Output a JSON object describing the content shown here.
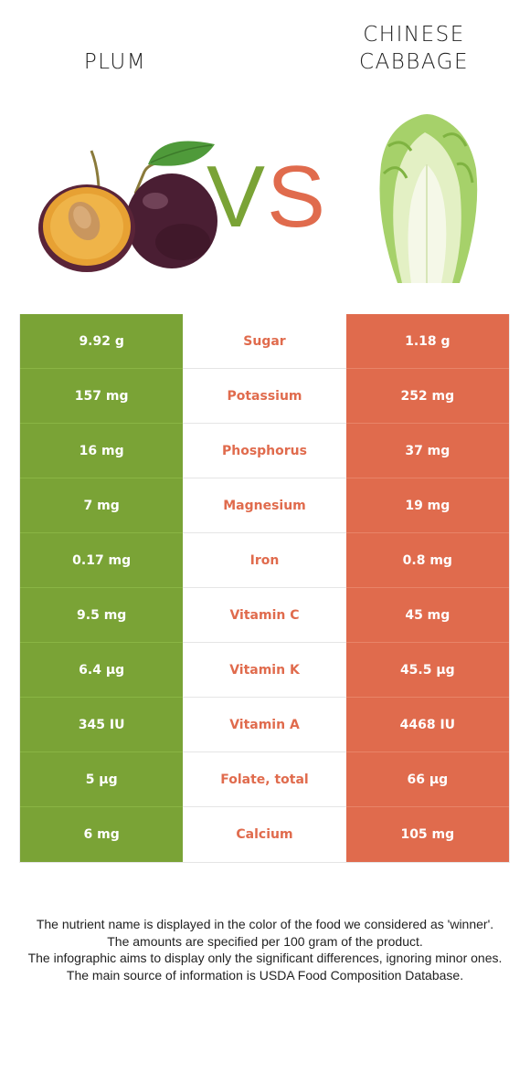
{
  "header": {
    "left_title": "PLUM",
    "right_title_line1": "CHINESE",
    "right_title_line2": "CABBAGE"
  },
  "vs": {
    "v": "V",
    "s": "S",
    "v_color": "#7aa336",
    "s_color": "#e06b4d"
  },
  "colors": {
    "left_food": "#7aa336",
    "right_food": "#e06b4d"
  },
  "rows": [
    {
      "left": "9.92 g",
      "nutrient": "Sugar",
      "right": "1.18 g"
    },
    {
      "left": "157 mg",
      "nutrient": "Potassium",
      "right": "252 mg"
    },
    {
      "left": "16 mg",
      "nutrient": "Phosphorus",
      "right": "37 mg"
    },
    {
      "left": "7 mg",
      "nutrient": "Magnesium",
      "right": "19 mg"
    },
    {
      "left": "0.17 mg",
      "nutrient": "Iron",
      "right": "0.8 mg"
    },
    {
      "left": "9.5 mg",
      "nutrient": "Vitamin C",
      "right": "45 mg"
    },
    {
      "left": "6.4 µg",
      "nutrient": "Vitamin K",
      "right": "45.5 µg"
    },
    {
      "left": "345 IU",
      "nutrient": "Vitamin A",
      "right": "4468 IU"
    },
    {
      "left": "5 µg",
      "nutrient": "Folate, total",
      "right": "66 µg"
    },
    {
      "left": "6 mg",
      "nutrient": "Calcium",
      "right": "105 mg"
    }
  ],
  "footer": {
    "line1": "The nutrient name is displayed in the color of the food we considered as 'winner'.",
    "line2": "The amounts are specified per 100 gram of the product.",
    "line3": "The infographic aims to display only the significant differences, ignoring minor ones.",
    "line4": "The main source of information is USDA Food Composition Database."
  }
}
